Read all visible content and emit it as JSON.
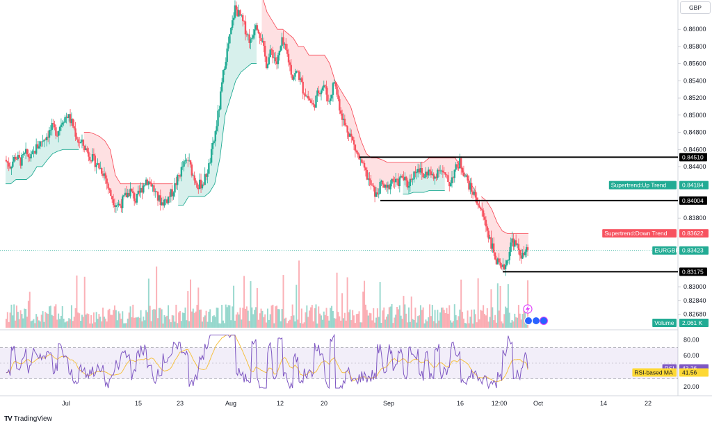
{
  "currency": "GBP",
  "logo_text": "TradingView",
  "price_axis": {
    "ticks": [
      "0.86000",
      "0.85800",
      "0.85600",
      "0.85400",
      "0.85200",
      "0.85000",
      "0.84800",
      "0.84600",
      "0.84400",
      "0.83800",
      "0.83000",
      "0.82840",
      "0.82680"
    ]
  },
  "time_axis": {
    "ticks": [
      "Jul",
      "15",
      "23",
      "Aug",
      "12",
      "20",
      "Sep",
      "16",
      "12:00",
      "Oct",
      "14",
      "22"
    ]
  },
  "horizontal_levels": [
    {
      "label": "0.84510",
      "value": 0.8451
    },
    {
      "label": "0.84004",
      "value": 0.84004
    },
    {
      "label": "0.83175",
      "value": 0.83175
    }
  ],
  "badges": {
    "supertrend_up": {
      "title": "Supertrend:Up Trend",
      "value": "0.84184",
      "color": "#22ab94"
    },
    "supertrend_down": {
      "title": "Supertrend:Down Trend",
      "value": "0.83622",
      "color": "#f7525f"
    },
    "symbol": {
      "title": "EURGBP",
      "value": "0.83423",
      "color": "#22ab94"
    },
    "volume": {
      "title": "Volume",
      "value": "2.061 K",
      "color": "#22ab94"
    },
    "rsi": {
      "title": "RSI",
      "value": "43.26",
      "color": "#7e57c2"
    },
    "rsi_ma": {
      "title": "RSI-based MA",
      "value": "41.56",
      "color": "#fdd835"
    }
  },
  "rsi_axis": {
    "ticks": [
      "80.00",
      "60.00",
      "20.00"
    ]
  },
  "colors": {
    "up": "#22ab94",
    "down": "#f7525f",
    "rsi": "#7e57c2",
    "rsi_ma": "#f5c142",
    "level": "#000000"
  },
  "chart_data": {
    "type": "candlestick",
    "symbol": "EURGBP",
    "ylim": [
      0.8262,
      0.8622
    ],
    "price_path": [
      0.8448,
      0.8441,
      0.8452,
      0.8446,
      0.8455,
      0.845,
      0.8462,
      0.847,
      0.8476,
      0.8485,
      0.848,
      0.8495,
      0.85,
      0.8488,
      0.847,
      0.8465,
      0.8455,
      0.8447,
      0.844,
      0.8432,
      0.841,
      0.8398,
      0.8395,
      0.8405,
      0.8412,
      0.84,
      0.8412,
      0.8425,
      0.842,
      0.8405,
      0.8398,
      0.8402,
      0.841,
      0.8425,
      0.844,
      0.8448,
      0.843,
      0.8418,
      0.8422,
      0.844,
      0.847,
      0.851,
      0.856,
      0.859,
      0.8625,
      0.8615,
      0.86,
      0.8585,
      0.861,
      0.859,
      0.856,
      0.8575,
      0.856,
      0.8585,
      0.857,
      0.8545,
      0.855,
      0.853,
      0.852,
      0.851,
      0.8528,
      0.8535,
      0.8515,
      0.854,
      0.851,
      0.8488,
      0.8478,
      0.846,
      0.8445,
      0.8432,
      0.8418,
      0.8406,
      0.842,
      0.8412,
      0.8425,
      0.842,
      0.8428,
      0.8418,
      0.843,
      0.844,
      0.8428,
      0.8435,
      0.8425,
      0.844,
      0.843,
      0.842,
      0.8435,
      0.8445,
      0.843,
      0.8415,
      0.8405,
      0.839,
      0.8372,
      0.835,
      0.833,
      0.8318,
      0.833,
      0.8355,
      0.8345,
      0.8335,
      0.8342
    ],
    "supertrend": [
      {
        "from": 0,
        "to": 14,
        "trend": "up",
        "values": [
          0.842,
          0.842,
          0.8425,
          0.8425,
          0.8425,
          0.843,
          0.844,
          0.844,
          0.8448,
          0.8455,
          0.8458,
          0.846,
          0.846,
          0.846,
          0.846
        ]
      },
      {
        "from": 15,
        "to": 32,
        "trend": "down",
        "values": [
          0.848,
          0.848,
          0.8478,
          0.8475,
          0.847,
          0.846,
          0.843,
          0.842,
          0.842,
          0.842,
          0.842,
          0.842,
          0.842,
          0.842,
          0.842,
          0.842,
          0.842,
          0.842
        ]
      },
      {
        "from": 33,
        "to": 48,
        "trend": "up",
        "values": [
          0.8395,
          0.8395,
          0.8405,
          0.8405,
          0.8405,
          0.8405,
          0.841,
          0.842,
          0.845,
          0.85,
          0.852,
          0.854,
          0.855,
          0.8555,
          0.856,
          0.856
        ]
      },
      {
        "from": 49,
        "to": 90,
        "trend": "down",
        "values": [
          0.864,
          0.862,
          0.861,
          0.86,
          0.86,
          0.8595,
          0.859,
          0.858,
          0.858,
          0.857,
          0.857,
          0.857,
          0.857,
          0.856,
          0.854,
          0.853,
          0.852,
          0.851,
          0.849,
          0.847,
          0.8455,
          0.845,
          0.845,
          0.8448,
          0.8445,
          0.8445,
          0.8445,
          0.8445,
          0.8445,
          0.8445,
          0.8445,
          0.8445,
          0.845,
          0.845,
          0.845,
          0.845,
          0.845,
          0.845,
          0.844,
          0.843,
          0.842,
          0.841
        ]
      },
      {
        "from": 76,
        "to": 84,
        "trend": "up",
        "values": [
          0.8408,
          0.8408,
          0.841,
          0.841,
          0.841,
          0.8412,
          0.8412,
          0.8412,
          0.8412
        ]
      },
      {
        "from": 91,
        "to": 100,
        "trend": "down",
        "values": [
          0.8405,
          0.84,
          0.839,
          0.8375,
          0.8365,
          0.8362,
          0.8362,
          0.8362,
          0.8362,
          0.8362
        ]
      }
    ],
    "rsi_ylim": [
      10,
      90
    ],
    "rsi_bands": {
      "upper": 70,
      "lower": 30
    }
  }
}
